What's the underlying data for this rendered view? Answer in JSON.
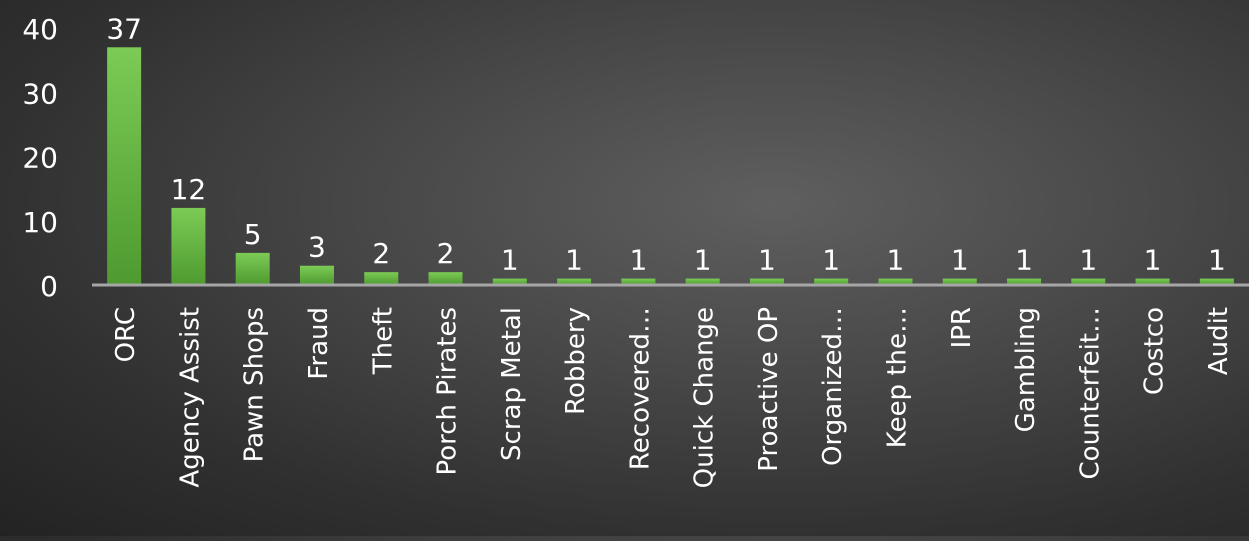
{
  "chart_data": {
    "type": "bar",
    "categories": [
      "ORC",
      "Agency Assist",
      "Pawn Shops",
      "Fraud",
      "Theft",
      "Porch Pirates",
      "Scrap Metal",
      "Robbery",
      "Recovered…",
      "Quick Change",
      "Proactive OP",
      "Organized…",
      "Keep the…",
      "IPR",
      "Gambling",
      "Counterfeit…",
      "Costco",
      "Audit"
    ],
    "values": [
      37,
      12,
      5,
      3,
      2,
      2,
      1,
      1,
      1,
      1,
      1,
      1,
      1,
      1,
      1,
      1,
      1,
      1
    ],
    "title": "",
    "xlabel": "",
    "ylabel": "",
    "ylim": [
      0,
      40
    ],
    "yticks": [
      0,
      10,
      20,
      30,
      40
    ],
    "data_labels": true,
    "grid": false,
    "legend": "none",
    "colors": {
      "bar_top": "#7ccb56",
      "bar_bottom": "#4e9a2f",
      "axis_line": "#a6a6a6",
      "text": "#ffffff"
    }
  }
}
